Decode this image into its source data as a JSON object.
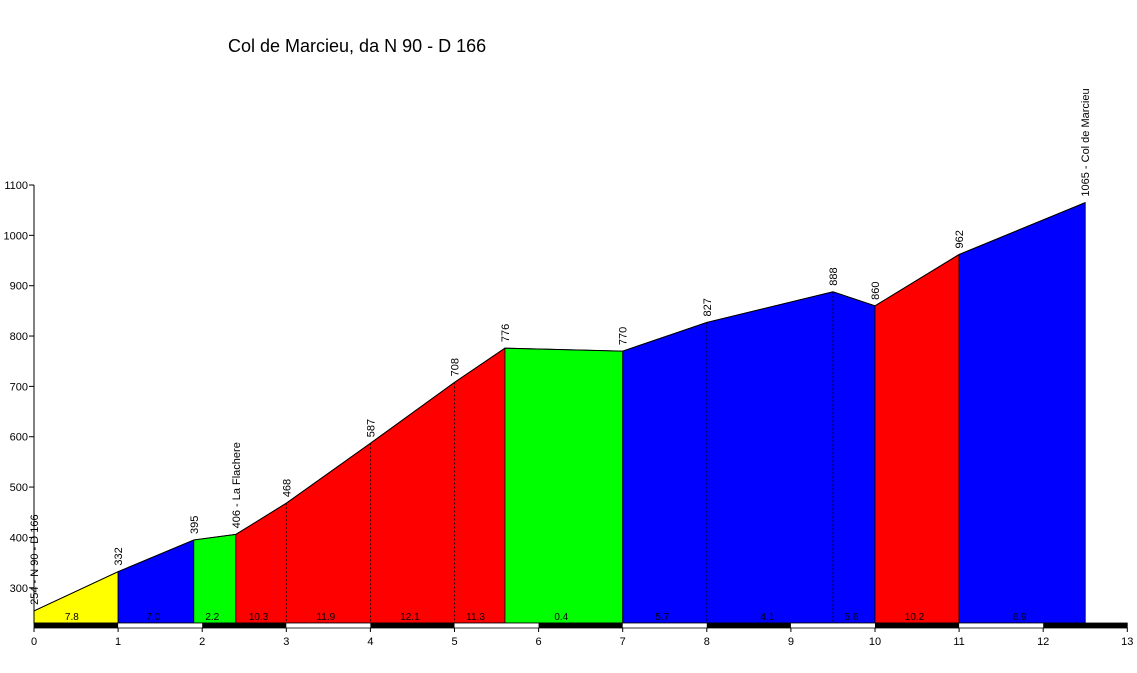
{
  "chart_data": {
    "type": "area",
    "title": "Col de Marcieu, da N 90 - D 166",
    "xlabel": "",
    "ylabel": "",
    "xlim": [
      0,
      13
    ],
    "ylim": [
      230,
      1100
    ],
    "x_ticks": [
      "0",
      "1",
      "2",
      "3",
      "4",
      "5",
      "6",
      "7",
      "8",
      "9",
      "10",
      "11",
      "12",
      "13"
    ],
    "y_ticks": [
      "300",
      "400",
      "500",
      "600",
      "700",
      "800",
      "900",
      "1000",
      "1100"
    ],
    "profile": [
      {
        "km": 0,
        "alt": 254
      },
      {
        "km": 1,
        "alt": 332
      },
      {
        "km": 1.9,
        "alt": 395
      },
      {
        "km": 2.4,
        "alt": 406
      },
      {
        "km": 3,
        "alt": 468
      },
      {
        "km": 4,
        "alt": 587
      },
      {
        "km": 5,
        "alt": 708
      },
      {
        "km": 5.6,
        "alt": 776
      },
      {
        "km": 7,
        "alt": 770
      },
      {
        "km": 8,
        "alt": 827
      },
      {
        "km": 9.5,
        "alt": 888
      },
      {
        "km": 10,
        "alt": 860
      },
      {
        "km": 11,
        "alt": 962
      },
      {
        "km": 12.5,
        "alt": 1065
      }
    ],
    "point_labels": [
      {
        "km": 0,
        "alt": 254,
        "text": "254 - N 90 - D 166"
      },
      {
        "km": 1,
        "alt": 332,
        "text": "332"
      },
      {
        "km": 1.9,
        "alt": 395,
        "text": "395"
      },
      {
        "km": 2.4,
        "alt": 406,
        "text": "406 - La Flachere"
      },
      {
        "km": 3,
        "alt": 468,
        "text": "468"
      },
      {
        "km": 4,
        "alt": 587,
        "text": "587"
      },
      {
        "km": 5,
        "alt": 708,
        "text": "708"
      },
      {
        "km": 5.6,
        "alt": 776,
        "text": "776"
      },
      {
        "km": 7,
        "alt": 770,
        "text": "770"
      },
      {
        "km": 8,
        "alt": 827,
        "text": "827"
      },
      {
        "km": 9.5,
        "alt": 888,
        "text": "888"
      },
      {
        "km": 10,
        "alt": 860,
        "text": "860"
      },
      {
        "km": 11,
        "alt": 962,
        "text": "962"
      },
      {
        "km": 12.5,
        "alt": 1065,
        "text": "1065 - Col de Marcieu"
      }
    ],
    "segments": [
      {
        "from": 0,
        "to": 1,
        "color": "#ffff00"
      },
      {
        "from": 1,
        "to": 1.9,
        "color": "#0000ff"
      },
      {
        "from": 1.9,
        "to": 2.4,
        "color": "#00ff00"
      },
      {
        "from": 2.4,
        "to": 5.6,
        "color": "#ff0000"
      },
      {
        "from": 5.6,
        "to": 7,
        "color": "#00ff00"
      },
      {
        "from": 7,
        "to": 10,
        "color": "#0000ff"
      },
      {
        "from": 10,
        "to": 11,
        "color": "#ff0000"
      },
      {
        "from": 11,
        "to": 12.5,
        "color": "#0000ff"
      }
    ],
    "dashed_markers": [
      3,
      4,
      5,
      8,
      9.5
    ],
    "gradients": [
      {
        "km": 0.45,
        "text": "7.8"
      },
      {
        "km": 1.42,
        "text": "7.0"
      },
      {
        "km": 2.12,
        "text": "2.2"
      },
      {
        "km": 2.67,
        "text": "10.3"
      },
      {
        "km": 3.47,
        "text": "11.9"
      },
      {
        "km": 4.47,
        "text": "12.1"
      },
      {
        "km": 5.25,
        "text": "11.3"
      },
      {
        "km": 6.27,
        "text": "0.4"
      },
      {
        "km": 7.47,
        "text": "5.7"
      },
      {
        "km": 8.72,
        "text": "4.1"
      },
      {
        "km": 9.72,
        "text": "5.6"
      },
      {
        "km": 10.47,
        "text": "10.2"
      },
      {
        "km": 11.72,
        "text": "6.9"
      }
    ],
    "grid": false,
    "legend": "none"
  }
}
